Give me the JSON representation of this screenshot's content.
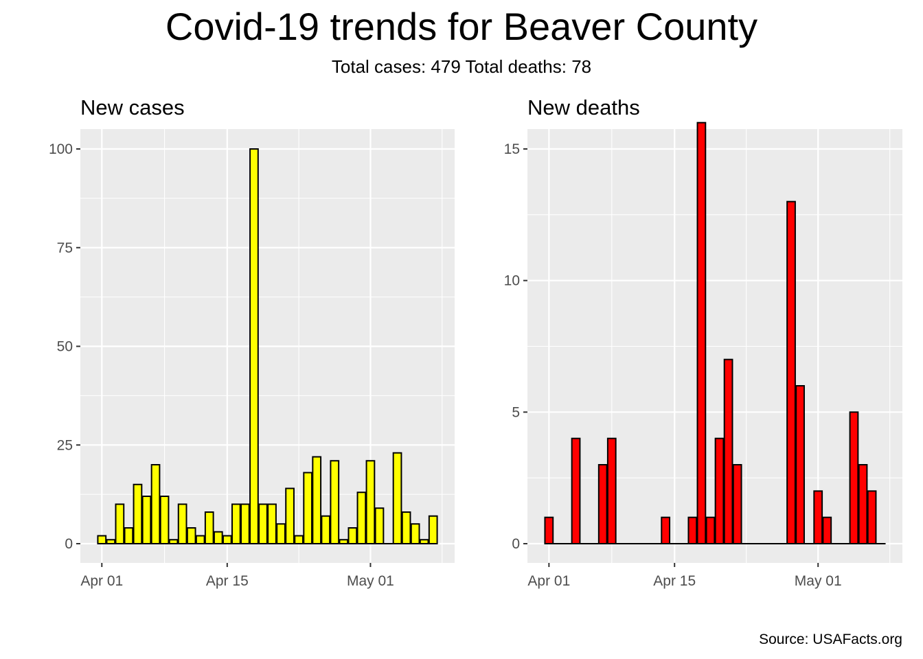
{
  "title": "Covid-19 trends for Beaver County",
  "subtitle": "Total cases: 479  Total deaths: 78",
  "caption": "Source: USAFacts.org",
  "colors": {
    "panel_bg": "#EBEBEB",
    "grid": "#FFFFFF",
    "axis_text": "#4D4D4D",
    "bar_outline": "#000000"
  },
  "chart_data": [
    {
      "type": "bar",
      "title": "New cases",
      "fill": "#FFFF00",
      "x_ticks": [
        "Apr 01",
        "Apr 15",
        "May 01"
      ],
      "y_ticks": [
        0,
        25,
        50,
        75,
        100
      ],
      "ylim": [
        0,
        105
      ],
      "grid": true,
      "x": [
        "2020-04-01",
        "2020-04-02",
        "2020-04-03",
        "2020-04-04",
        "2020-04-05",
        "2020-04-06",
        "2020-04-07",
        "2020-04-08",
        "2020-04-09",
        "2020-04-10",
        "2020-04-11",
        "2020-04-12",
        "2020-04-13",
        "2020-04-14",
        "2020-04-15",
        "2020-04-16",
        "2020-04-17",
        "2020-04-18",
        "2020-04-19",
        "2020-04-20",
        "2020-04-21",
        "2020-04-22",
        "2020-04-23",
        "2020-04-24",
        "2020-04-25",
        "2020-04-26",
        "2020-04-27",
        "2020-04-28",
        "2020-04-29",
        "2020-04-30",
        "2020-05-01",
        "2020-05-02",
        "2020-05-03",
        "2020-05-04",
        "2020-05-05",
        "2020-05-06",
        "2020-05-07",
        "2020-05-08"
      ],
      "values": [
        2,
        1,
        10,
        4,
        15,
        12,
        20,
        12,
        1,
        10,
        4,
        2,
        8,
        3,
        2,
        10,
        10,
        100,
        10,
        10,
        5,
        14,
        2,
        18,
        22,
        7,
        21,
        1,
        4,
        13,
        21,
        9,
        0,
        23,
        8,
        5,
        1,
        7
      ]
    },
    {
      "type": "bar",
      "title": "New deaths",
      "fill": "#FF0000",
      "x_ticks": [
        "Apr 01",
        "Apr 15",
        "May 01"
      ],
      "y_ticks": [
        0,
        5,
        10,
        15
      ],
      "ylim": [
        0,
        16.5
      ],
      "grid": true,
      "x": [
        "2020-04-01",
        "2020-04-02",
        "2020-04-03",
        "2020-04-04",
        "2020-04-05",
        "2020-04-06",
        "2020-04-07",
        "2020-04-08",
        "2020-04-09",
        "2020-04-10",
        "2020-04-11",
        "2020-04-12",
        "2020-04-13",
        "2020-04-14",
        "2020-04-15",
        "2020-04-16",
        "2020-04-17",
        "2020-04-18",
        "2020-04-19",
        "2020-04-20",
        "2020-04-21",
        "2020-04-22",
        "2020-04-23",
        "2020-04-24",
        "2020-04-25",
        "2020-04-26",
        "2020-04-27",
        "2020-04-28",
        "2020-04-29",
        "2020-04-30",
        "2020-05-01",
        "2020-05-02",
        "2020-05-03",
        "2020-05-04",
        "2020-05-05",
        "2020-05-06",
        "2020-05-07",
        "2020-05-08"
      ],
      "values": [
        1,
        0,
        0,
        4,
        0,
        0,
        3,
        4,
        0,
        0,
        0,
        0,
        0,
        1,
        0,
        0,
        1,
        16,
        1,
        4,
        7,
        3,
        0,
        0,
        0,
        0,
        0,
        13,
        6,
        0,
        2,
        1,
        0,
        0,
        5,
        3,
        2,
        0
      ]
    }
  ]
}
